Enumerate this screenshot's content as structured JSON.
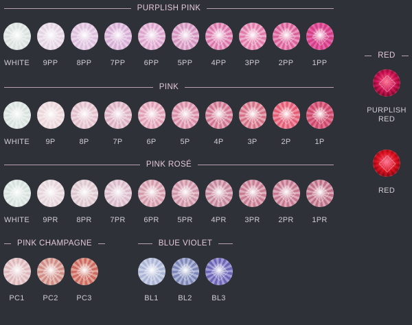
{
  "sections": {
    "purplish_pink": {
      "title": "PURPLISH PINK",
      "stones": [
        {
          "label": "WHITE",
          "color": "#dfe6e4"
        },
        {
          "label": "9PP",
          "color": "#e9dbe8"
        },
        {
          "label": "8PP",
          "color": "#e3c8e3"
        },
        {
          "label": "7PP",
          "color": "#ddb9dc"
        },
        {
          "label": "6PP",
          "color": "#e2b1d5"
        },
        {
          "label": "5PP",
          "color": "#dba2c8"
        },
        {
          "label": "4PP",
          "color": "#e18ab8"
        },
        {
          "label": "3PP",
          "color": "#e68cb6"
        },
        {
          "label": "2PP",
          "color": "#e174a6"
        },
        {
          "label": "1PP",
          "color": "#d94c8f"
        }
      ]
    },
    "pink": {
      "title": "PINK",
      "stones": [
        {
          "label": "WHITE",
          "color": "#dee6e3"
        },
        {
          "label": "9P",
          "color": "#efdde0"
        },
        {
          "label": "8P",
          "color": "#e8c9d3"
        },
        {
          "label": "7P",
          "color": "#e2bccb"
        },
        {
          "label": "6P",
          "color": "#e6adc0"
        },
        {
          "label": "5P",
          "color": "#df9db3"
        },
        {
          "label": "4P",
          "color": "#d8889f"
        },
        {
          "label": "3P",
          "color": "#dc8497"
        },
        {
          "label": "2P",
          "color": "#e86f84"
        },
        {
          "label": "1P",
          "color": "#d35877"
        }
      ]
    },
    "pink_rose": {
      "title": "PINK ROSÉ",
      "stones": [
        {
          "label": "WHITE",
          "color": "#dde6e3"
        },
        {
          "label": "9PR",
          "color": "#eadbe0"
        },
        {
          "label": "8PR",
          "color": "#e3cfd6"
        },
        {
          "label": "7PR",
          "color": "#e0c5d2"
        },
        {
          "label": "6PR",
          "color": "#dcaab9"
        },
        {
          "label": "5PR",
          "color": "#d8a4b4"
        },
        {
          "label": "4PR",
          "color": "#cf98ab"
        },
        {
          "label": "3PR",
          "color": "#d18ea3"
        },
        {
          "label": "2PR",
          "color": "#cf8a9f"
        },
        {
          "label": "1PR",
          "color": "#c98399"
        }
      ]
    },
    "pink_champagne": {
      "title": "PINK CHAMPAGNE",
      "stones": [
        {
          "label": "PC1",
          "color": "#e3c2c5"
        },
        {
          "label": "PC2",
          "color": "#d89d96"
        },
        {
          "label": "PC3",
          "color": "#d47e74"
        }
      ]
    },
    "blue_violet": {
      "title": "BLUE VIOLET",
      "stones": [
        {
          "label": "BL1",
          "color": "#b7bfdc"
        },
        {
          "label": "BL2",
          "color": "#8f98c4"
        },
        {
          "label": "BL3",
          "color": "#7f79c2"
        }
      ]
    },
    "red": {
      "title": "RED",
      "stones": [
        {
          "label": "PURPLISH RED",
          "color": "#c8134f"
        },
        {
          "label": "RED",
          "color": "#d8101e"
        }
      ]
    }
  }
}
